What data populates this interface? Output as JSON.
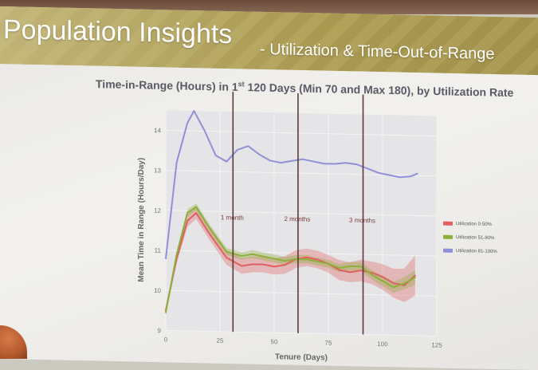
{
  "slide": {
    "title_main": "Population Insights",
    "title_sub": "- Utilization & Time-Out-of-Range"
  },
  "chart_data": {
    "type": "line",
    "title_part1": "Time-in-Range (Hours) in 1",
    "title_sup": "st",
    "title_part2": " 120 Days (Min 70 and Max 180), by Utilization Rate",
    "xlabel": "Tenure (Days)",
    "ylabel": "Mean Time in Range (Hours/Day)",
    "xlim": [
      0,
      125
    ],
    "ylim": [
      9,
      14.5
    ],
    "xticks": [
      0,
      25,
      50,
      75,
      100,
      125
    ],
    "yticks": [
      9,
      10,
      11,
      12,
      13,
      14
    ],
    "vlines": [
      {
        "x": 31,
        "label": "1 month"
      },
      {
        "x": 61,
        "label": "2 months"
      },
      {
        "x": 91,
        "label": "3 months"
      }
    ],
    "grid": true,
    "legend_position": "right",
    "series": [
      {
        "name": "Utilization 0-50%",
        "color": "#e06060",
        "x": [
          0,
          5,
          10,
          14,
          20,
          28,
          35,
          40,
          45,
          50,
          55,
          60,
          65,
          70,
          75,
          80,
          85,
          90,
          95,
          100,
          105,
          110,
          115
        ],
        "y": [
          9.5,
          10.8,
          11.75,
          11.95,
          11.45,
          10.85,
          10.65,
          10.7,
          10.7,
          10.65,
          10.7,
          10.85,
          10.9,
          10.85,
          10.75,
          10.6,
          10.55,
          10.6,
          10.55,
          10.45,
          10.3,
          10.25,
          10.5
        ],
        "band": [
          0.1,
          0.12,
          0.15,
          0.15,
          0.15,
          0.18,
          0.2,
          0.2,
          0.2,
          0.2,
          0.22,
          0.22,
          0.22,
          0.22,
          0.22,
          0.25,
          0.25,
          0.27,
          0.28,
          0.32,
          0.36,
          0.42,
          0.5
        ]
      },
      {
        "name": "Utilization 51-80%",
        "color": "#8cb03a",
        "x": [
          0,
          5,
          10,
          14,
          20,
          28,
          35,
          40,
          45,
          50,
          55,
          60,
          65,
          70,
          75,
          80,
          85,
          90,
          95,
          100,
          105,
          110,
          115
        ],
        "y": [
          9.45,
          10.9,
          11.95,
          12.1,
          11.6,
          11.0,
          10.9,
          10.95,
          10.9,
          10.85,
          10.8,
          10.85,
          10.85,
          10.8,
          10.75,
          10.65,
          10.7,
          10.7,
          10.5,
          10.35,
          10.2,
          10.3,
          10.45
        ],
        "band": [
          0.08,
          0.08,
          0.09,
          0.09,
          0.09,
          0.09,
          0.09,
          0.1,
          0.1,
          0.1,
          0.1,
          0.1,
          0.1,
          0.1,
          0.1,
          0.1,
          0.11,
          0.11,
          0.12,
          0.13,
          0.14,
          0.15,
          0.18
        ]
      },
      {
        "name": "Utilization 81-100%",
        "color": "#9090d8",
        "x": [
          0,
          5,
          10,
          13,
          18,
          23,
          28,
          33,
          38,
          43,
          48,
          53,
          58,
          63,
          68,
          73,
          78,
          83,
          88,
          93,
          98,
          103,
          108,
          113,
          116
        ],
        "y": [
          10.8,
          13.2,
          14.2,
          14.5,
          14.0,
          13.4,
          13.25,
          13.55,
          13.65,
          13.45,
          13.3,
          13.25,
          13.3,
          13.35,
          13.3,
          13.25,
          13.25,
          13.28,
          13.25,
          13.15,
          13.05,
          13.0,
          12.95,
          12.98,
          13.05
        ],
        "band": []
      }
    ]
  }
}
